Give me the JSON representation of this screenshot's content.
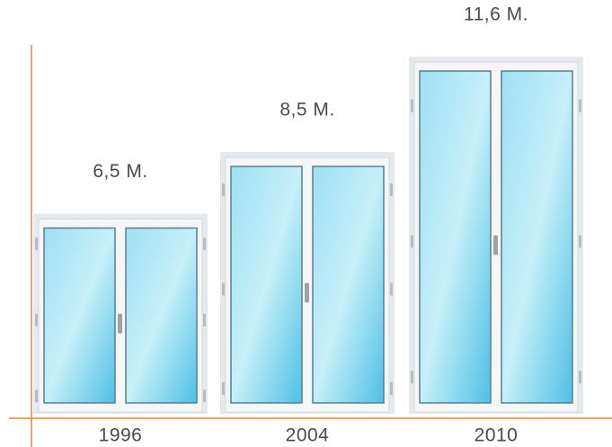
{
  "chart_data": {
    "type": "bar",
    "categories": [
      "1996",
      "2004",
      "2010"
    ],
    "values": [
      6.5,
      8.5,
      11.6
    ],
    "value_labels": [
      "6,5 M.",
      "8,5 M.",
      "11,6 M."
    ],
    "color": "#5cc8e8",
    "axis_color": "#e8863a"
  }
}
